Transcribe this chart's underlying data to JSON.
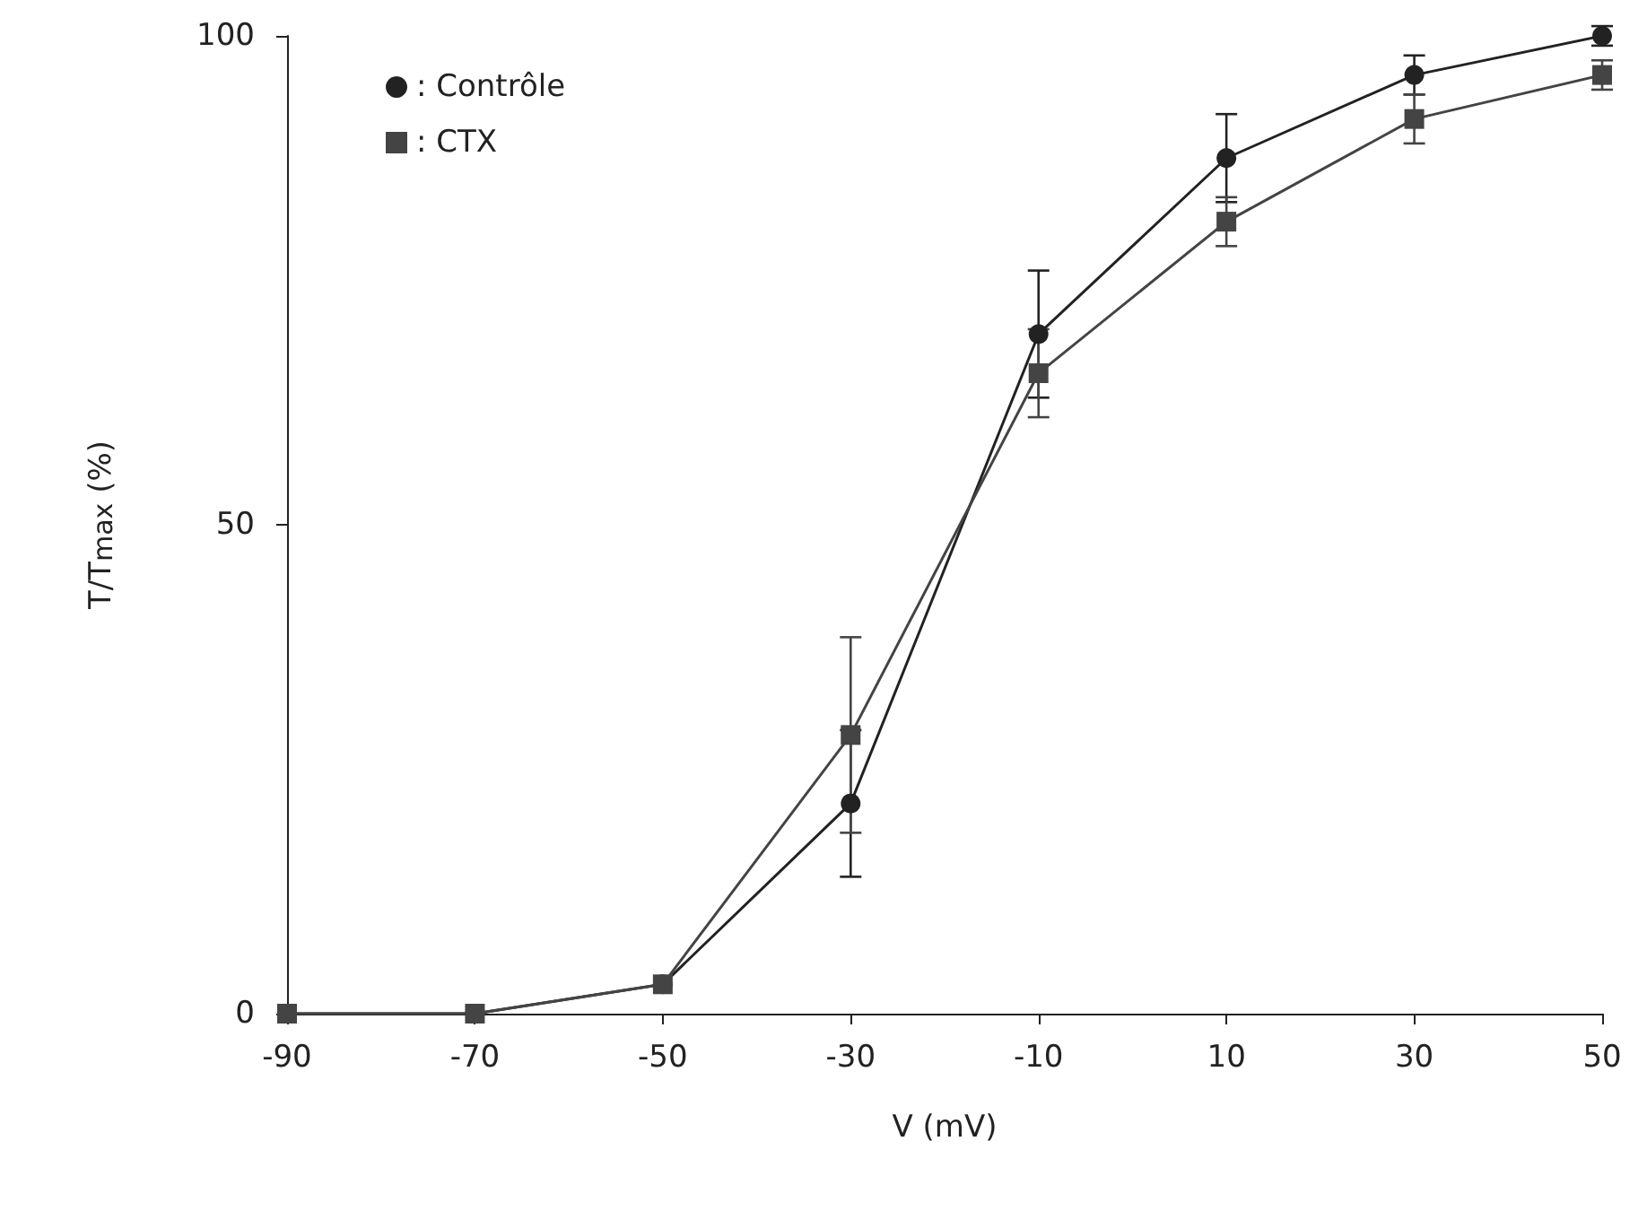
{
  "chart_data": {
    "type": "line",
    "xlabel": "V (mV)",
    "ylabel": "T/T$_{max}$ (%)",
    "x": [
      -90,
      -70,
      -50,
      -30,
      -10,
      10,
      30,
      50
    ],
    "series": [
      {
        "name": ": Contrôle",
        "color": "#222222",
        "marker": "circle",
        "values": [
          0,
          0,
          3,
          21.5,
          69.5,
          87.5,
          96,
          100
        ],
        "errors": [
          null,
          null,
          null,
          7.5,
          6.5,
          4.5,
          2,
          1
        ]
      },
      {
        "name": ": CTX",
        "color": "#444444",
        "marker": "square",
        "values": [
          0,
          0,
          3,
          28.5,
          65.5,
          81,
          91.5,
          96
        ],
        "errors": [
          null,
          null,
          null,
          10,
          4.5,
          2.5,
          2.5,
          1.5
        ]
      }
    ],
    "xlim": [
      -90,
      50
    ],
    "xticks": [
      -90,
      -70,
      -50,
      -30,
      -10,
      10,
      30,
      50
    ],
    "ylim": [
      0,
      100
    ],
    "yticks": [
      0,
      50,
      100
    ],
    "grid": false,
    "legend": "top left",
    "line_style": "solid"
  }
}
